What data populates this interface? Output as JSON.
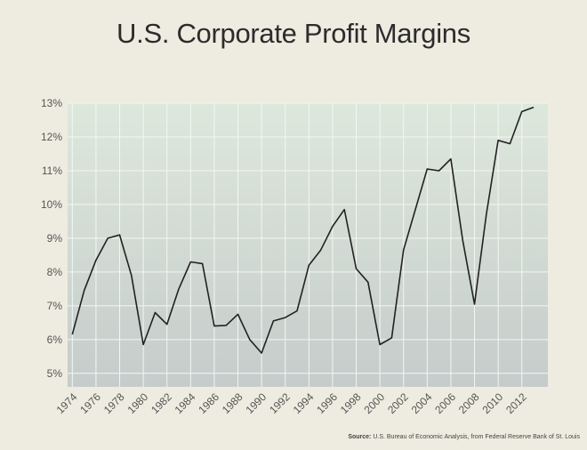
{
  "title": "U.S. Corporate Profit Margins",
  "source_label": "Source:",
  "source_text": "U.S. Bureau of Economic Analysis, from Federal Reserve Bank of St. Louis",
  "chart_data": {
    "type": "line",
    "title": "U.S. Corporate Profit Margins",
    "xlabel": "",
    "ylabel": "",
    "xlim": [
      1973.6,
      2014.2
    ],
    "ylim": [
      4.6,
      13
    ],
    "y_ticks": [
      5,
      6,
      7,
      8,
      9,
      10,
      11,
      12,
      13
    ],
    "y_tick_labels": [
      "5%",
      "6%",
      "7%",
      "8%",
      "9%",
      "10%",
      "11%",
      "12%",
      "13%"
    ],
    "x_ticks": [
      1974,
      1976,
      1978,
      1980,
      1982,
      1984,
      1986,
      1988,
      1990,
      1992,
      1994,
      1996,
      1998,
      2000,
      2002,
      2004,
      2006,
      2008,
      2010,
      2012
    ],
    "x_tick_labels": [
      "1974",
      "1976",
      "1978",
      "1980",
      "1982",
      "1984",
      "1986",
      "1988",
      "1990",
      "1992",
      "1994",
      "1996",
      "1998",
      "2000",
      "2002",
      "2004",
      "2006",
      "2008",
      "2010",
      "2012"
    ],
    "grid": true,
    "line_color": "#222222",
    "x": [
      1974,
      1975,
      1976,
      1977,
      1978,
      1979,
      1980,
      1981,
      1982,
      1983,
      1984,
      1985,
      1986,
      1987,
      1988,
      1989,
      1990,
      1991,
      1992,
      1993,
      1994,
      1995,
      1996,
      1997,
      1998,
      1999,
      2000,
      2001,
      2002,
      2003,
      2004,
      2005,
      2006,
      2007,
      2008,
      2009,
      2010,
      2011,
      2012,
      2013
    ],
    "values": [
      6.15,
      7.45,
      8.35,
      9.0,
      9.1,
      7.9,
      5.85,
      6.8,
      6.45,
      7.5,
      8.3,
      8.25,
      6.4,
      6.42,
      6.75,
      6.0,
      5.6,
      6.55,
      6.65,
      6.85,
      8.2,
      8.65,
      9.35,
      9.85,
      8.1,
      7.7,
      5.85,
      6.05,
      8.65,
      9.85,
      11.05,
      11.0,
      11.35,
      8.95,
      7.05,
      9.7,
      11.9,
      11.8,
      12.75,
      12.88
    ]
  }
}
